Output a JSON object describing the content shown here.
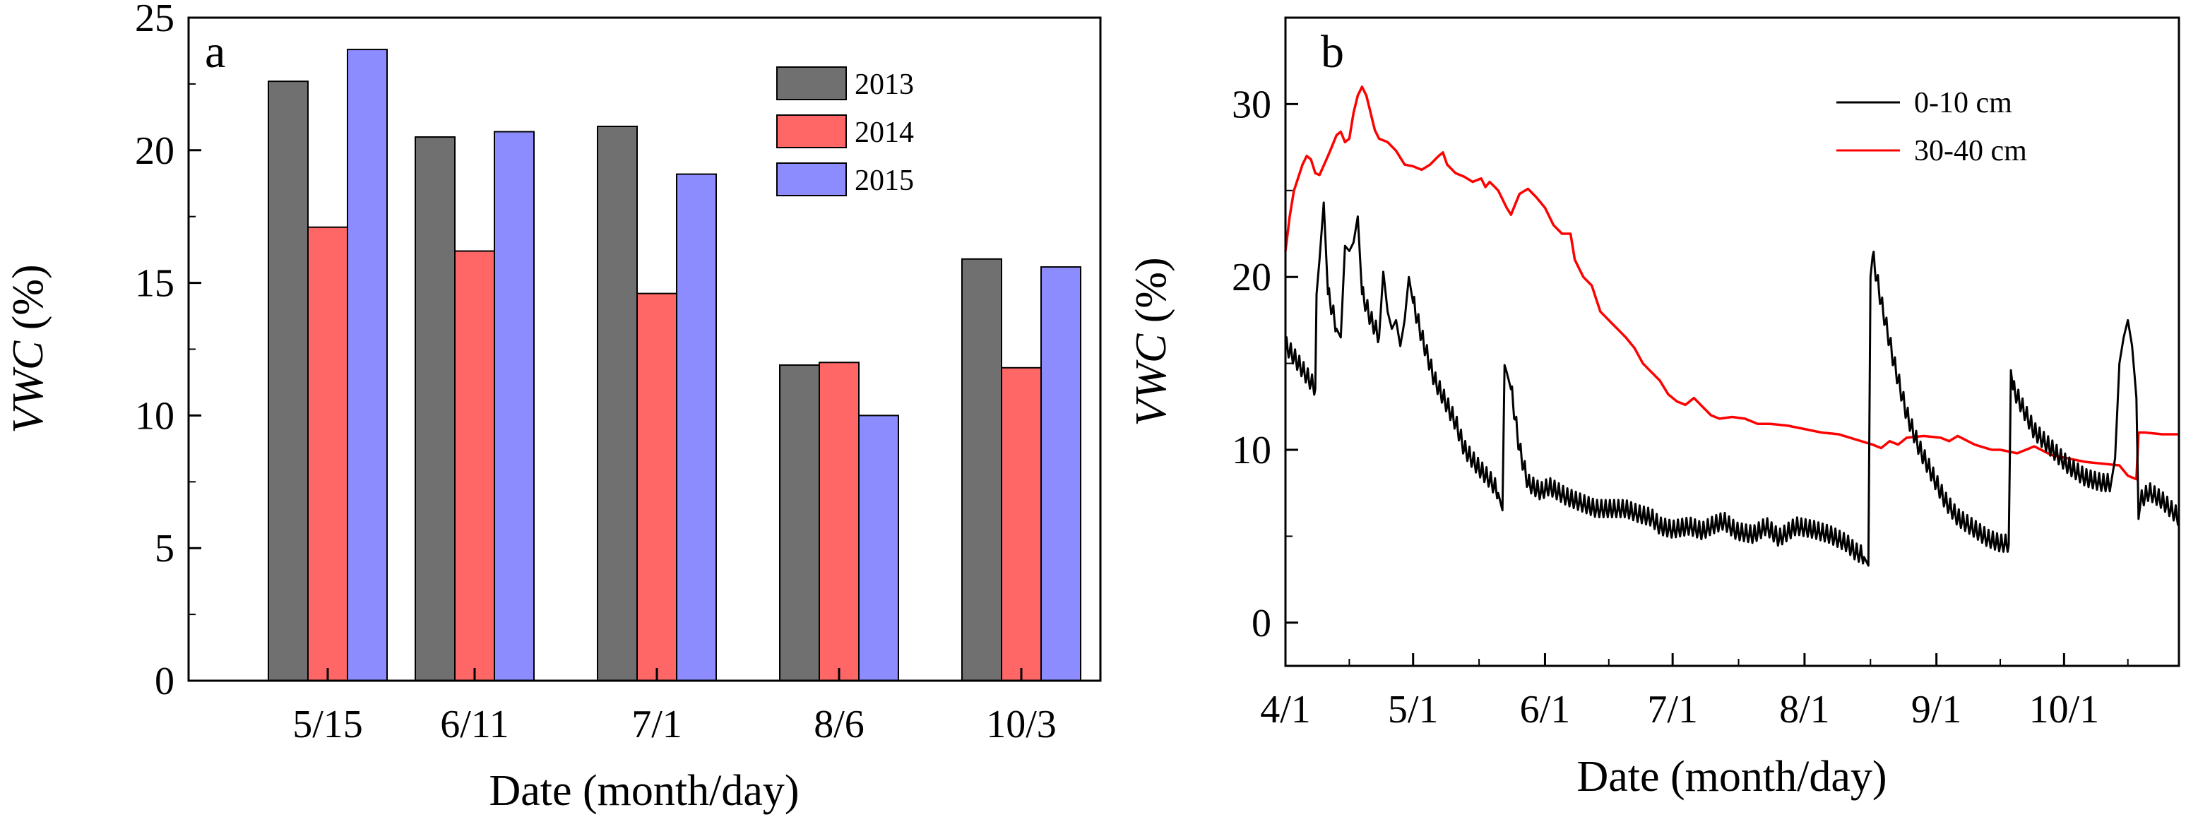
{
  "chart_data": [
    {
      "type": "bar",
      "panel_label": "a",
      "categories": [
        "5/15",
        "6/11",
        "7/1",
        "8/6",
        "10/3"
      ],
      "series": [
        {
          "name": "2013",
          "color": "#707070",
          "values": [
            22.6,
            20.5,
            20.9,
            11.9,
            15.9
          ]
        },
        {
          "name": "2014",
          "color": "#ff6666",
          "values": [
            17.1,
            16.2,
            14.6,
            12.0,
            11.8
          ]
        },
        {
          "name": "2015",
          "color": "#8c8cff",
          "values": [
            23.8,
            20.7,
            19.1,
            10.0,
            15.6
          ]
        }
      ],
      "xlabel": "Date (month/day)",
      "ylabel_italic": "VWC",
      "ylabel_rest": " (%)",
      "ylim": [
        0,
        25
      ],
      "yticks": [
        "0",
        "5",
        "10",
        "15",
        "20",
        "25"
      ],
      "legend": "top-right"
    },
    {
      "type": "line",
      "panel_label": "b",
      "xlabel": "Date (month/day)",
      "ylabel_italic": "VWC",
      "ylabel_rest": " (%)",
      "xlim_days": [
        0,
        210
      ],
      "ylim": [
        -2.5,
        35
      ],
      "yticks": [
        "0",
        "10",
        "20",
        "30"
      ],
      "xticks": [
        {
          "label": "4/1",
          "day": 0
        },
        {
          "label": "5/1",
          "day": 30
        },
        {
          "label": "6/1",
          "day": 61
        },
        {
          "label": "7/1",
          "day": 91
        },
        {
          "label": "8/1",
          "day": 122
        },
        {
          "label": "9/1",
          "day": 153
        },
        {
          "label": "10/1",
          "day": 183
        }
      ],
      "legend": "top-right",
      "series": [
        {
          "name": "0-10 cm",
          "color": "#000000",
          "points": [
            [
              0,
              16
            ],
            [
              2,
              15.3
            ],
            [
              5,
              14.2
            ],
            [
              7,
              13.5
            ],
            [
              7.3,
              19
            ],
            [
              8,
              21
            ],
            [
              9,
              24.3
            ],
            [
              10,
              19
            ],
            [
              12,
              17
            ],
            [
              13,
              16.5
            ],
            [
              14,
              21.8
            ],
            [
              15,
              21.5
            ],
            [
              16,
              22
            ],
            [
              17,
              23.5
            ],
            [
              18,
              19
            ],
            [
              20,
              17.5
            ],
            [
              22,
              16.5
            ],
            [
              23,
              20.3
            ],
            [
              24,
              18
            ],
            [
              25,
              17
            ],
            [
              26,
              17.5
            ],
            [
              27,
              16
            ],
            [
              28,
              17.5
            ],
            [
              29,
              20
            ],
            [
              30,
              18.5
            ],
            [
              32,
              16.5
            ],
            [
              35,
              14
            ],
            [
              38,
              12.5
            ],
            [
              40,
              11.5
            ],
            [
              42,
              10
            ],
            [
              45,
              9
            ],
            [
              48,
              8.2
            ],
            [
              50,
              7.5
            ],
            [
              51,
              6.5
            ],
            [
              51.5,
              14.9
            ],
            [
              52,
              14.5
            ],
            [
              53,
              13.5
            ],
            [
              55,
              10
            ],
            [
              57,
              8
            ],
            [
              60,
              7.5
            ],
            [
              62,
              7.8
            ],
            [
              64,
              7.5
            ],
            [
              66,
              7.2
            ],
            [
              68,
              7
            ],
            [
              70,
              6.8
            ],
            [
              73,
              6.5
            ],
            [
              76,
              6.5
            ],
            [
              80,
              6.5
            ],
            [
              83,
              6.2
            ],
            [
              86,
              6
            ],
            [
              88,
              5.5
            ],
            [
              91,
              5.3
            ],
            [
              95,
              5.5
            ],
            [
              98,
              5.2
            ],
            [
              100,
              5.5
            ],
            [
              103,
              5.8
            ],
            [
              106,
              5.2
            ],
            [
              110,
              5
            ],
            [
              113,
              5.5
            ],
            [
              116,
              4.8
            ],
            [
              120,
              5.5
            ],
            [
              124,
              5.3
            ],
            [
              128,
              5
            ],
            [
              132,
              4.5
            ],
            [
              134,
              4
            ],
            [
              136,
              3.8
            ],
            [
              137,
              3.3
            ],
            [
              137.5,
              20
            ],
            [
              138,
              21.2
            ],
            [
              140,
              18.5
            ],
            [
              143,
              15
            ],
            [
              146,
              12
            ],
            [
              149,
              10
            ],
            [
              152,
              8.5
            ],
            [
              155,
              7
            ],
            [
              158,
              6
            ],
            [
              161,
              5.5
            ],
            [
              165,
              4.8
            ],
            [
              168,
              4.5
            ],
            [
              170,
              4.5
            ],
            [
              170.5,
              14.6
            ],
            [
              171,
              13.5
            ],
            [
              173,
              12.5
            ],
            [
              176,
              11
            ],
            [
              180,
              10
            ],
            [
              184,
              9
            ],
            [
              188,
              8.3
            ],
            [
              192,
              8
            ],
            [
              194,
              8
            ],
            [
              195,
              9.5
            ],
            [
              196,
              15
            ],
            [
              197,
              16.5
            ],
            [
              198,
              17.5
            ],
            [
              199,
              16
            ],
            [
              200,
              13
            ],
            [
              200.5,
              6
            ],
            [
              201,
              7
            ],
            [
              203,
              7.5
            ],
            [
              206,
              7
            ],
            [
              210,
              6
            ]
          ]
        },
        {
          "name": "30-40 cm",
          "color": "#ff0000",
          "points": [
            [
              0,
              21.5
            ],
            [
              1,
              23.5
            ],
            [
              2,
              25
            ],
            [
              4,
              26.5
            ],
            [
              5,
              27
            ],
            [
              6,
              26.8
            ],
            [
              7,
              26
            ],
            [
              8,
              25.9
            ],
            [
              10,
              27
            ],
            [
              12,
              28.2
            ],
            [
              13,
              28.4
            ],
            [
              14,
              27.8
            ],
            [
              15,
              28
            ],
            [
              16,
              29.5
            ],
            [
              17,
              30.5
            ],
            [
              18,
              31
            ],
            [
              19,
              30.5
            ],
            [
              20,
              29.5
            ],
            [
              21,
              28.5
            ],
            [
              22,
              28
            ],
            [
              24,
              27.8
            ],
            [
              26,
              27.3
            ],
            [
              28,
              26.5
            ],
            [
              30,
              26.4
            ],
            [
              32,
              26.2
            ],
            [
              34,
              26.5
            ],
            [
              36,
              27
            ],
            [
              37,
              27.2
            ],
            [
              38,
              26.5
            ],
            [
              40,
              26
            ],
            [
              42,
              25.8
            ],
            [
              44,
              25.5
            ],
            [
              46,
              25.7
            ],
            [
              47,
              25.2
            ],
            [
              48,
              25.5
            ],
            [
              50,
              25
            ],
            [
              52,
              24
            ],
            [
              53,
              23.6
            ],
            [
              55,
              24.8
            ],
            [
              57,
              25.1
            ],
            [
              59,
              24.6
            ],
            [
              61,
              24
            ],
            [
              63,
              23
            ],
            [
              65,
              22.5
            ],
            [
              67,
              22.5
            ],
            [
              68,
              21
            ],
            [
              70,
              20
            ],
            [
              72,
              19.5
            ],
            [
              74,
              18
            ],
            [
              76,
              17.5
            ],
            [
              78,
              17
            ],
            [
              80,
              16.5
            ],
            [
              82,
              15.9
            ],
            [
              84,
              15
            ],
            [
              86,
              14.5
            ],
            [
              88,
              14
            ],
            [
              90,
              13.2
            ],
            [
              92,
              12.8
            ],
            [
              94,
              12.6
            ],
            [
              96,
              13
            ],
            [
              98,
              12.5
            ],
            [
              100,
              12
            ],
            [
              102,
              11.8
            ],
            [
              105,
              11.9
            ],
            [
              108,
              11.8
            ],
            [
              111,
              11.5
            ],
            [
              114,
              11.5
            ],
            [
              118,
              11.4
            ],
            [
              122,
              11.2
            ],
            [
              126,
              11
            ],
            [
              130,
              10.9
            ],
            [
              134,
              10.6
            ],
            [
              138,
              10.3
            ],
            [
              140,
              10.1
            ],
            [
              142,
              10.5
            ],
            [
              144,
              10.3
            ],
            [
              146,
              10.7
            ],
            [
              150,
              10.8
            ],
            [
              154,
              10.7
            ],
            [
              156,
              10.5
            ],
            [
              158,
              10.8
            ],
            [
              162,
              10.3
            ],
            [
              166,
              10
            ],
            [
              168,
              10
            ],
            [
              172,
              9.8
            ],
            [
              176,
              10.2
            ],
            [
              180,
              9.7
            ],
            [
              184,
              9.5
            ],
            [
              188,
              9.3
            ],
            [
              192,
              9.2
            ],
            [
              196,
              9.1
            ],
            [
              198,
              8.5
            ],
            [
              200,
              8.3
            ],
            [
              200.5,
              11
            ],
            [
              202,
              11
            ],
            [
              206,
              10.9
            ],
            [
              210,
              10.9
            ]
          ]
        }
      ]
    }
  ]
}
